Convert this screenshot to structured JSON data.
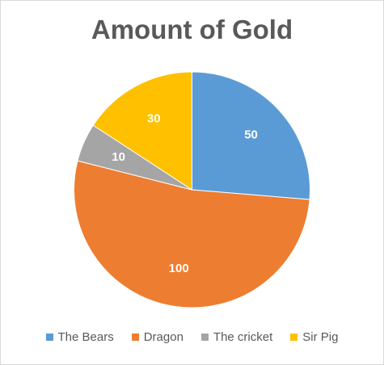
{
  "chart_data": {
    "type": "pie",
    "title": "Amount of Gold",
    "categories": [
      "The Bears",
      "Dragon",
      "The cricket",
      "Sir Pig"
    ],
    "values": [
      50,
      100,
      10,
      30
    ],
    "colors": [
      "#5b9bd5",
      "#ed7d31",
      "#a5a5a5",
      "#ffc000"
    ],
    "data_labels": [
      "50",
      "100",
      "10",
      "30"
    ],
    "legend_position": "bottom"
  }
}
